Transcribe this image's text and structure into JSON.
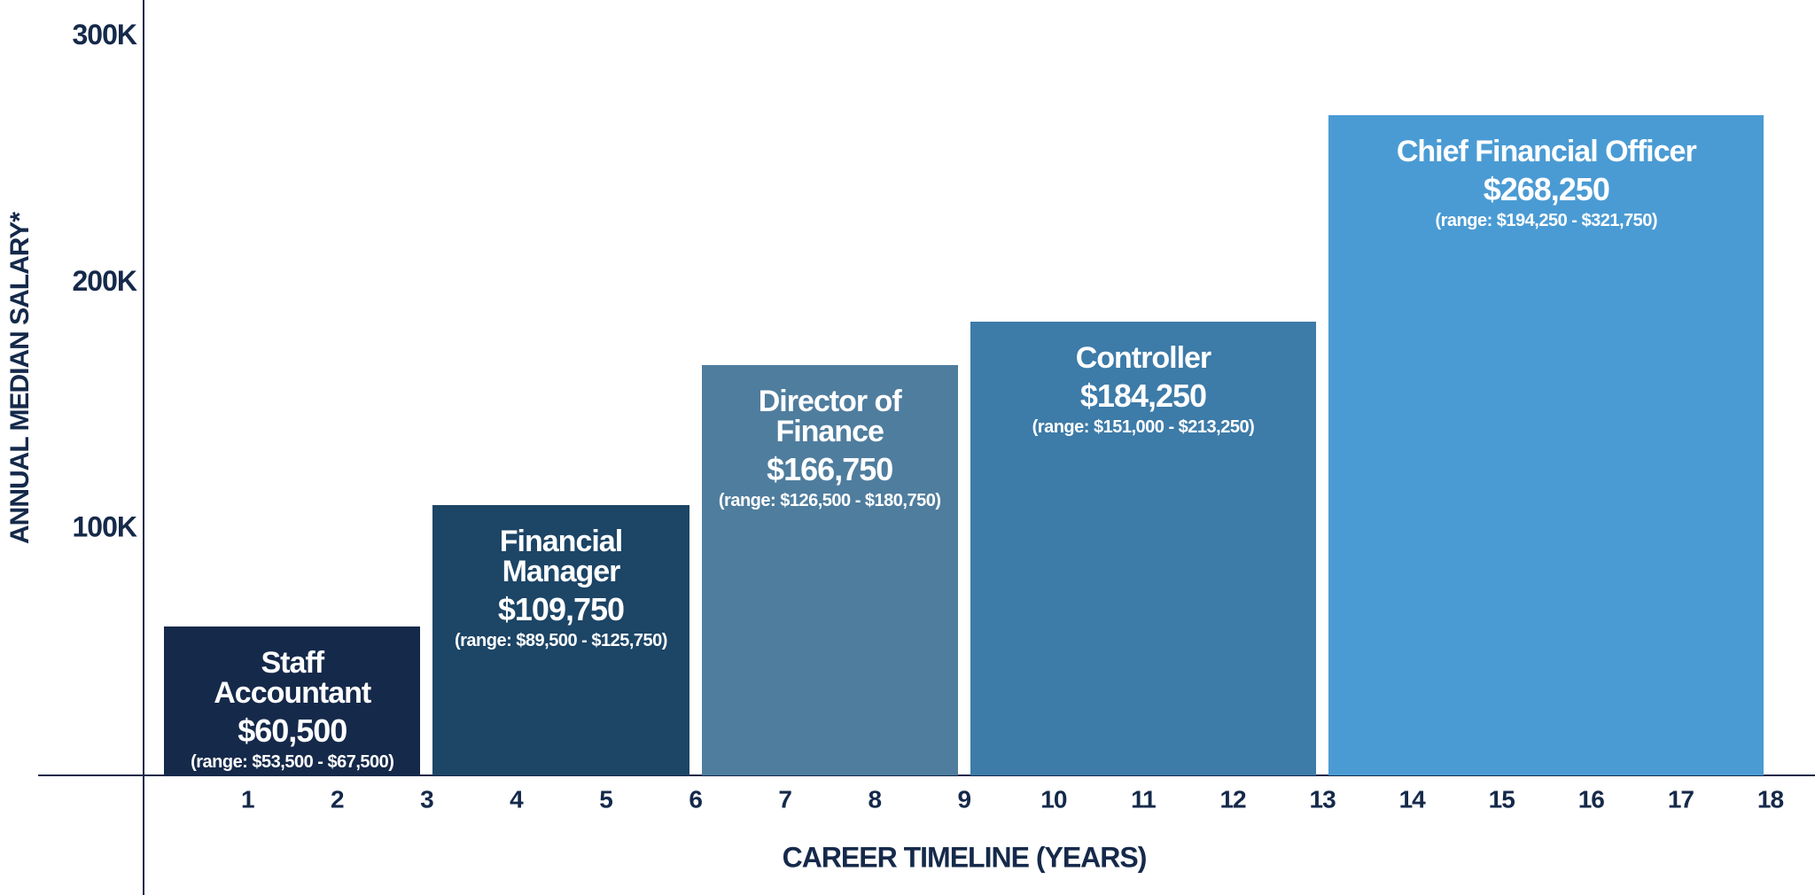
{
  "chart_data": {
    "type": "histogram",
    "x_label": "CAREER TIMELINE (YEARS)",
    "y_label": "ANNUAL MEDIAN SALARY*",
    "categories": [
      "Staff Accountant",
      "Financial Manager",
      "Director of Finance",
      "Controller",
      "Chief Financial Officer"
    ],
    "bins": [
      0,
      3,
      6,
      9,
      13,
      18
    ],
    "values": [
      60500,
      109750,
      166750,
      184250,
      268250
    ],
    "value_labels": [
      "$60,500",
      "$109,750",
      "$166,750",
      "$184,250",
      "$268,250"
    ],
    "range_labels": [
      "(range: $53,500 - $67,500)",
      "(range: $89,500 - $125,750)",
      "(range: $126,500 - $180,750)",
      "(range: $151,000 - $213,250)",
      "(range: $194,250 - $321,750)"
    ],
    "colors": [
      "#15294a",
      "#1c4566",
      "#4f7d9e",
      "#3d7ba8",
      "#4a9bd4"
    ],
    "xlim": [
      -0.16,
      18.5
    ],
    "xticks": [
      1,
      2,
      3,
      4,
      5,
      6,
      7,
      8,
      9,
      10,
      11,
      12,
      13,
      14,
      15,
      16,
      17,
      18
    ],
    "ylim": [
      0,
      315000
    ],
    "yticks": [
      {
        "value": 100000,
        "label": "100K"
      },
      {
        "value": 200000,
        "label": "200K"
      },
      {
        "value": 300000,
        "label": "300K"
      }
    ]
  }
}
